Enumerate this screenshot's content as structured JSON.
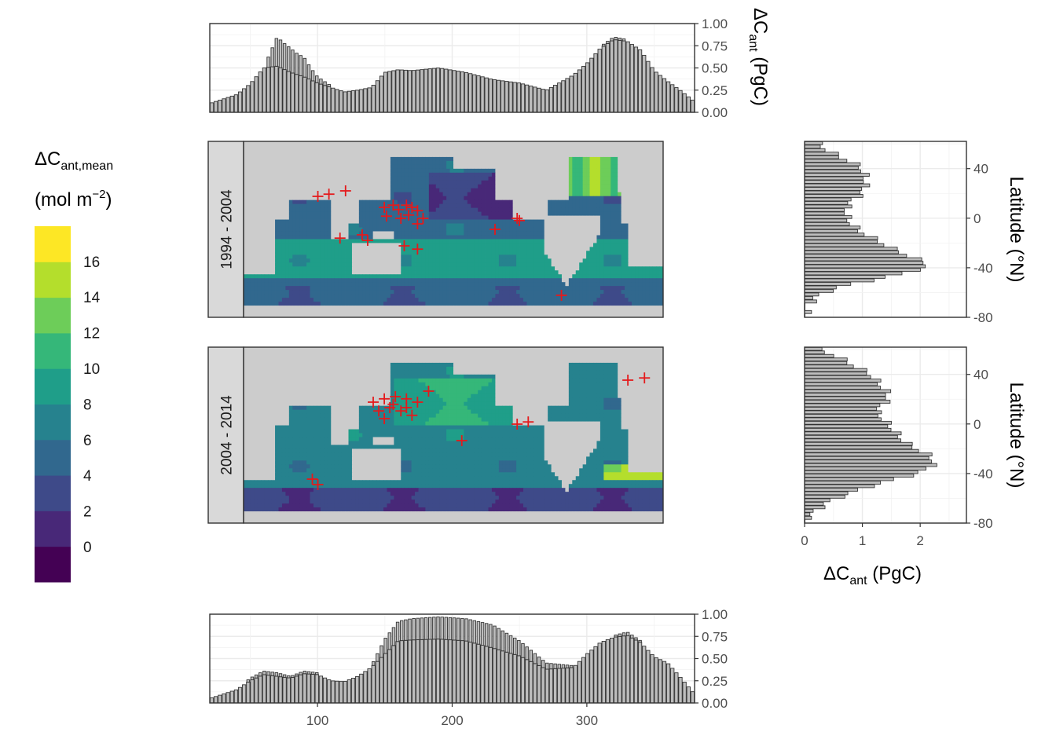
{
  "chart_data": [
    {
      "type": "bar",
      "panel": "top-longitude-histogram",
      "ylabel": "ΔCant (PgC)",
      "ylim": [
        0,
        1.0
      ],
      "yticks": [
        "0.00",
        "0.25",
        "0.50",
        "0.75",
        "1.00"
      ],
      "xlim": [
        20,
        380
      ],
      "grid": true,
      "series": [
        {
          "profile": [
            [
              20,
              0.1
            ],
            [
              40,
              0.2
            ],
            [
              50,
              0.32
            ],
            [
              60,
              0.5
            ],
            [
              70,
              0.52
            ],
            [
              80,
              0.45
            ],
            [
              90,
              0.4
            ],
            [
              100,
              0.33
            ],
            [
              110,
              0.28
            ],
            [
              120,
              0.23
            ],
            [
              130,
              0.25
            ],
            [
              140,
              0.28
            ],
            [
              150,
              0.45
            ],
            [
              160,
              0.48
            ],
            [
              170,
              0.47
            ],
            [
              190,
              0.5
            ],
            [
              210,
              0.45
            ],
            [
              230,
              0.37
            ],
            [
              250,
              0.33
            ],
            [
              270,
              0.25
            ],
            [
              290,
              0.42
            ],
            [
              300,
              0.55
            ],
            [
              310,
              0.72
            ],
            [
              320,
              0.82
            ],
            [
              330,
              0.8
            ],
            [
              340,
              0.7
            ],
            [
              350,
              0.47
            ],
            [
              360,
              0.35
            ],
            [
              370,
              0.24
            ],
            [
              380,
              0.12
            ]
          ]
        },
        {
          "profile": [
            [
              20,
              0.1
            ],
            [
              40,
              0.22
            ],
            [
              50,
              0.3
            ],
            [
              60,
              0.5
            ],
            [
              70,
              0.85
            ],
            [
              75,
              0.78
            ],
            [
              80,
              0.72
            ],
            [
              85,
              0.66
            ],
            [
              90,
              0.62
            ],
            [
              95,
              0.5
            ],
            [
              100,
              0.4
            ],
            [
              110,
              0.3
            ],
            [
              120,
              0.24
            ],
            [
              130,
              0.26
            ],
            [
              140,
              0.28
            ],
            [
              150,
              0.46
            ],
            [
              160,
              0.48
            ],
            [
              170,
              0.48
            ],
            [
              190,
              0.5
            ],
            [
              210,
              0.46
            ],
            [
              230,
              0.38
            ],
            [
              250,
              0.34
            ],
            [
              270,
              0.26
            ],
            [
              290,
              0.42
            ],
            [
              300,
              0.56
            ],
            [
              310,
              0.74
            ],
            [
              320,
              0.85
            ],
            [
              330,
              0.82
            ],
            [
              340,
              0.72
            ],
            [
              350,
              0.48
            ],
            [
              360,
              0.36
            ],
            [
              370,
              0.24
            ],
            [
              380,
              0.12
            ]
          ]
        }
      ]
    },
    {
      "type": "heatmap",
      "panel": "maps",
      "facets": [
        "1994 - 2004",
        "2004 - 2014"
      ],
      "legend_title_main": "ΔC",
      "legend_title_sub": "ant,mean",
      "legend_unit_main": "(mol m",
      "legend_unit_sup": "−2",
      "legend_unit_end": ")",
      "legend_labels": [
        "0",
        "2",
        "4",
        "6",
        "8",
        "10",
        "12",
        "14",
        "16"
      ],
      "colors": [
        "#440154",
        "#482878",
        "#3E4A89",
        "#31688E",
        "#26828E",
        "#1F9E89",
        "#35B779",
        "#6DCD59",
        "#B4DE2C",
        "#FDE725"
      ],
      "land_color": "#cccccc",
      "marker_color": "#e41a1c",
      "legend_position": "left"
    },
    {
      "type": "bar",
      "panel": "right-latitude-histogram",
      "orientation": "horizontal",
      "ylabel": "Latitude (°N)",
      "yticks": [
        "40",
        "0",
        "-40",
        "-80"
      ],
      "ylim": [
        -80,
        62
      ],
      "xlim": [
        0,
        2.8
      ],
      "xticks": [
        "0",
        "1",
        "2"
      ],
      "xlabel_main": "ΔC",
      "xlabel_sub": "ant",
      "xlabel_end": " (PgC)",
      "grid": true,
      "series": [
        {
          "facet": "1994 - 2004",
          "profile": [
            [
              62,
              0.15
            ],
            [
              55,
              0.35
            ],
            [
              50,
              0.55
            ],
            [
              45,
              0.8
            ],
            [
              40,
              0.95
            ],
            [
              35,
              1.0
            ],
            [
              30,
              1.02
            ],
            [
              25,
              1.0
            ],
            [
              20,
              0.95
            ],
            [
              15,
              0.8
            ],
            [
              10,
              0.7
            ],
            [
              5,
              0.68
            ],
            [
              0,
              0.7
            ],
            [
              -5,
              0.78
            ],
            [
              -10,
              0.9
            ],
            [
              -15,
              1.1
            ],
            [
              -20,
              1.3
            ],
            [
              -25,
              1.5
            ],
            [
              -30,
              1.75
            ],
            [
              -35,
              2.0
            ],
            [
              -38,
              2.15
            ],
            [
              -40,
              2.0
            ],
            [
              -45,
              1.65
            ],
            [
              -50,
              1.1
            ],
            [
              -55,
              0.6
            ],
            [
              -60,
              0.3
            ],
            [
              -65,
              0.12
            ],
            [
              -70,
              0.05
            ]
          ]
        },
        {
          "facet": "2004 - 2014",
          "profile": [
            [
              62,
              0.1
            ],
            [
              55,
              0.5
            ],
            [
              50,
              0.7
            ],
            [
              45,
              0.9
            ],
            [
              40,
              1.1
            ],
            [
              35,
              1.2
            ],
            [
              30,
              1.3
            ],
            [
              25,
              1.4
            ],
            [
              20,
              1.4
            ],
            [
              15,
              1.3
            ],
            [
              10,
              1.2
            ],
            [
              5,
              1.3
            ],
            [
              0,
              1.4
            ],
            [
              -5,
              1.5
            ],
            [
              -10,
              1.6
            ],
            [
              -15,
              1.7
            ],
            [
              -20,
              1.9
            ],
            [
              -25,
              2.1
            ],
            [
              -30,
              2.2
            ],
            [
              -35,
              2.15
            ],
            [
              -40,
              1.9
            ],
            [
              -45,
              1.5
            ],
            [
              -50,
              1.1
            ],
            [
              -55,
              0.8
            ],
            [
              -60,
              0.5
            ],
            [
              -65,
              0.3
            ],
            [
              -70,
              0.15
            ],
            [
              -75,
              0.05
            ]
          ]
        }
      ]
    },
    {
      "type": "bar",
      "panel": "bottom-longitude-histogram",
      "ylim": [
        0,
        1.0
      ],
      "yticks": [
        "0.00",
        "0.25",
        "0.50",
        "0.75",
        "1.00"
      ],
      "xlim": [
        20,
        380
      ],
      "xticks": [
        "100",
        "200",
        "300"
      ],
      "grid": true,
      "series": [
        {
          "profile": [
            [
              20,
              0.05
            ],
            [
              40,
              0.15
            ],
            [
              50,
              0.25
            ],
            [
              60,
              0.32
            ],
            [
              70,
              0.3
            ],
            [
              80,
              0.28
            ],
            [
              90,
              0.33
            ],
            [
              100,
              0.32
            ],
            [
              110,
              0.25
            ],
            [
              120,
              0.24
            ],
            [
              130,
              0.3
            ],
            [
              140,
              0.4
            ],
            [
              150,
              0.55
            ],
            [
              160,
              0.7
            ],
            [
              170,
              0.71
            ],
            [
              190,
              0.72
            ],
            [
              210,
              0.7
            ],
            [
              230,
              0.62
            ],
            [
              250,
              0.53
            ],
            [
              270,
              0.38
            ],
            [
              290,
              0.4
            ],
            [
              300,
              0.55
            ],
            [
              310,
              0.68
            ],
            [
              320,
              0.74
            ],
            [
              330,
              0.76
            ],
            [
              340,
              0.68
            ],
            [
              350,
              0.52
            ],
            [
              360,
              0.45
            ],
            [
              370,
              0.28
            ],
            [
              380,
              0.1
            ]
          ]
        },
        {
          "profile": [
            [
              20,
              0.05
            ],
            [
              40,
              0.15
            ],
            [
              50,
              0.28
            ],
            [
              60,
              0.36
            ],
            [
              70,
              0.34
            ],
            [
              80,
              0.3
            ],
            [
              90,
              0.36
            ],
            [
              100,
              0.34
            ],
            [
              110,
              0.27
            ],
            [
              120,
              0.25
            ],
            [
              130,
              0.32
            ],
            [
              140,
              0.42
            ],
            [
              150,
              0.72
            ],
            [
              160,
              0.92
            ],
            [
              170,
              0.95
            ],
            [
              190,
              0.97
            ],
            [
              210,
              0.95
            ],
            [
              230,
              0.88
            ],
            [
              250,
              0.7
            ],
            [
              270,
              0.45
            ],
            [
              290,
              0.42
            ],
            [
              300,
              0.56
            ],
            [
              310,
              0.7
            ],
            [
              320,
              0.76
            ],
            [
              330,
              0.8
            ],
            [
              340,
              0.7
            ],
            [
              350,
              0.53
            ],
            [
              360,
              0.46
            ],
            [
              370,
              0.3
            ],
            [
              380,
              0.1
            ]
          ]
        }
      ]
    }
  ],
  "markers": [
    {
      "facet": "1994 - 2004",
      "points": [
        [
          -60,
          20
        ],
        [
          -52,
          22
        ],
        [
          -58,
          12
        ],
        [
          -47,
          18
        ],
        [
          -40,
          22
        ],
        [
          -35,
          20
        ],
        [
          -45,
          10
        ],
        [
          -38,
          13
        ],
        [
          -30,
          17
        ],
        [
          -100,
          -8
        ],
        [
          -80,
          -5
        ],
        [
          -75,
          -10
        ],
        [
          -42,
          -15
        ],
        [
          -30,
          -18
        ],
        [
          -30,
          5
        ],
        [
          -25,
          10
        ],
        [
          40,
          0
        ],
        [
          60,
          10
        ],
        [
          62,
          8
        ],
        [
          -120,
          30
        ],
        [
          -110,
          32
        ],
        [
          -95,
          35
        ],
        [
          100,
          -60
        ]
      ]
    },
    {
      "facet": "2004 - 2014",
      "points": [
        [
          -70,
          30
        ],
        [
          -60,
          33
        ],
        [
          -50,
          35
        ],
        [
          -40,
          33
        ],
        [
          -30,
          30
        ],
        [
          -65,
          22
        ],
        [
          -55,
          25
        ],
        [
          -45,
          22
        ],
        [
          -35,
          18
        ],
        [
          -125,
          -40
        ],
        [
          -120,
          -45
        ],
        [
          10,
          -5
        ],
        [
          60,
          10
        ],
        [
          70,
          12
        ],
        [
          -40,
          25
        ],
        [
          -20,
          40
        ],
        [
          160,
          50
        ],
        [
          175,
          52
        ],
        [
          -52,
          28
        ],
        [
          -60,
          15
        ]
      ]
    }
  ]
}
